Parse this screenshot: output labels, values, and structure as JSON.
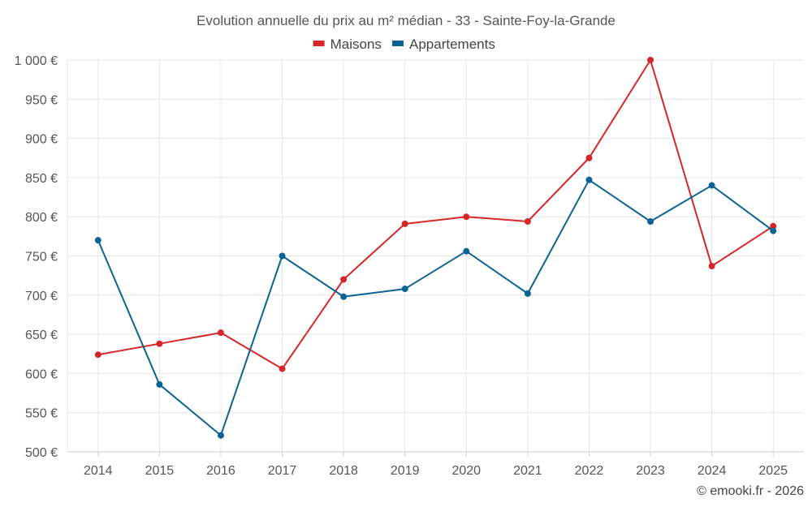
{
  "chart_data": {
    "type": "line",
    "title": "Evolution annuelle du prix au m² médian - 33 - Sainte-Foy-la-Grande",
    "categories": [
      "2014",
      "2015",
      "2016",
      "2017",
      "2018",
      "2019",
      "2020",
      "2021",
      "2022",
      "2023",
      "2024",
      "2025"
    ],
    "series": [
      {
        "name": "Maisons",
        "color": "#d62728",
        "values": [
          624,
          638,
          652,
          606,
          720,
          791,
          800,
          794,
          875,
          1000,
          737,
          788
        ]
      },
      {
        "name": "Appartements",
        "color": "#0b6394",
        "values": [
          770,
          586,
          521,
          750,
          698,
          708,
          756,
          702,
          847,
          794,
          840,
          782
        ]
      }
    ],
    "ylim": [
      500,
      1000
    ],
    "yticks": [
      500,
      550,
      600,
      650,
      700,
      750,
      800,
      850,
      900,
      950,
      1000
    ],
    "ytick_labels": [
      "500 €",
      "550 €",
      "600 €",
      "650 €",
      "700 €",
      "750 €",
      "800 €",
      "850 €",
      "900 €",
      "950 €",
      "1 000 €"
    ],
    "xlabel": "",
    "ylabel": "",
    "grid": true,
    "legend_position": "top-center"
  },
  "credit": "© emooki.fr - 2026"
}
